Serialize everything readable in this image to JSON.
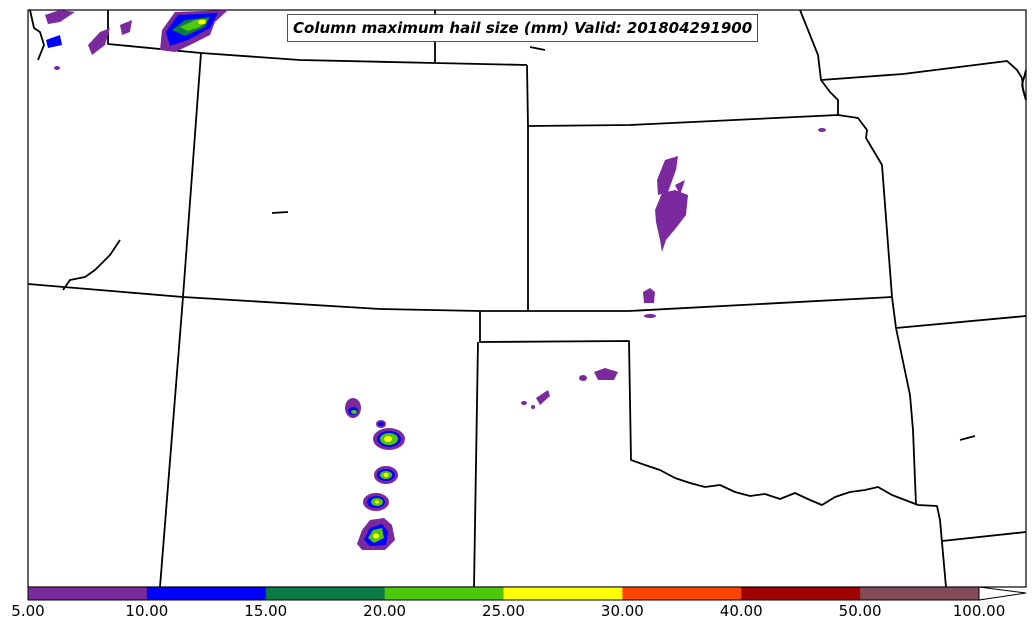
{
  "title": "Column maximum hail size (mm) Valid: 201804291900",
  "colorbar": {
    "ticks": [
      "5.00",
      "10.00",
      "15.00",
      "20.00",
      "25.00",
      "30.00",
      "40.00",
      "50.00",
      "100.00"
    ],
    "colors": [
      "#7b2a9e",
      "#0000ff",
      "#0b7a45",
      "#4fc80a",
      "#ffff00",
      "#ff4500",
      "#a00000",
      "#844a5a"
    ],
    "extend": "max"
  }
}
